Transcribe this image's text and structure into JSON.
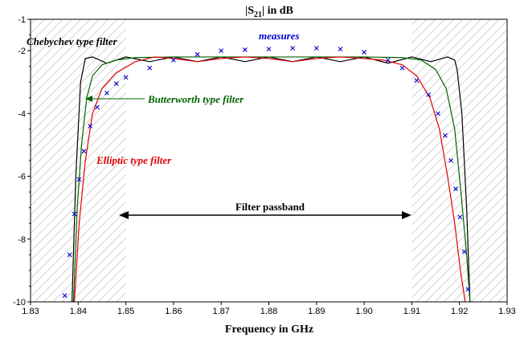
{
  "chart_data": {
    "type": "line",
    "title_main": "|S",
    "title_sub": "21",
    "title_rest": "| in dB",
    "xlabel": "Frequency in GHz",
    "ylabel": "",
    "xlim": [
      1.83,
      1.93
    ],
    "ylim": [
      -10,
      -1
    ],
    "x_ticks": [
      "1.83",
      "1.84",
      "1.85",
      "1.86",
      "1.87",
      "1.88",
      "1.89",
      "1.90",
      "1.91",
      "1.92",
      "1.93"
    ],
    "y_ticks": [
      "-10",
      "-8",
      "-6",
      "-4",
      "-2",
      "-1"
    ],
    "grid": false,
    "shaded_regions": [
      [
        1.83,
        1.85
      ],
      [
        1.91,
        1.93
      ]
    ],
    "series": [
      {
        "name": "Chebychev type filter",
        "color": "#000000",
        "style": "line",
        "x": [
          1.8387,
          1.8395,
          1.8405,
          1.8415,
          1.843,
          1.846,
          1.85,
          1.855,
          1.86,
          1.865,
          1.87,
          1.875,
          1.88,
          1.885,
          1.89,
          1.895,
          1.9,
          1.905,
          1.91,
          1.914,
          1.9175,
          1.919,
          1.9195,
          1.9205,
          1.9215,
          1.9222
        ],
        "y": [
          -10,
          -6,
          -3,
          -2.25,
          -2.2,
          -2.4,
          -2.2,
          -2.35,
          -2.2,
          -2.35,
          -2.2,
          -2.35,
          -2.2,
          -2.35,
          -2.2,
          -2.35,
          -2.2,
          -2.4,
          -2.2,
          -2.35,
          -2.2,
          -2.3,
          -2.6,
          -4,
          -7,
          -10
        ]
      },
      {
        "name": "Butterworth type filter",
        "color": "#006400",
        "style": "line",
        "x": [
          1.839,
          1.8398,
          1.8407,
          1.8418,
          1.843,
          1.845,
          1.848,
          1.852,
          1.86,
          1.87,
          1.88,
          1.89,
          1.9,
          1.908,
          1.912,
          1.915,
          1.9172,
          1.919,
          1.9203,
          1.9215,
          1.9222
        ],
        "y": [
          -10,
          -7,
          -5,
          -3.5,
          -2.8,
          -2.45,
          -2.3,
          -2.22,
          -2.2,
          -2.2,
          -2.2,
          -2.2,
          -2.2,
          -2.22,
          -2.3,
          -2.6,
          -3.2,
          -4.5,
          -6.5,
          -8.5,
          -10
        ],
        "annotation": "Butterworth type filter"
      },
      {
        "name": "Elliptic type filter",
        "color": "#e00000",
        "style": "line",
        "x": [
          1.8392,
          1.8402,
          1.8415,
          1.843,
          1.845,
          1.848,
          1.852,
          1.856,
          1.86,
          1.865,
          1.87,
          1.875,
          1.88,
          1.885,
          1.89,
          1.895,
          1.9,
          1.904,
          1.908,
          1.911,
          1.9138,
          1.9158,
          1.9175,
          1.919,
          1.9202,
          1.9212
        ],
        "y": [
          -10,
          -7.5,
          -5.5,
          -4,
          -3.2,
          -2.7,
          -2.35,
          -2.2,
          -2.25,
          -2.35,
          -2.25,
          -2.2,
          -2.25,
          -2.35,
          -2.25,
          -2.2,
          -2.25,
          -2.3,
          -2.45,
          -2.8,
          -3.5,
          -4.5,
          -6,
          -7.5,
          -9,
          -10
        ],
        "annotation": "Elliptic type filter"
      },
      {
        "name": "measures",
        "color": "#0000cc",
        "style": "marker",
        "x": [
          1.8372,
          1.8382,
          1.8392,
          1.8402,
          1.8412,
          1.8425,
          1.844,
          1.846,
          1.848,
          1.85,
          1.855,
          1.86,
          1.865,
          1.87,
          1.875,
          1.88,
          1.885,
          1.89,
          1.895,
          1.9,
          1.905,
          1.908,
          1.911,
          1.9135,
          1.9155,
          1.917,
          1.9182,
          1.9192,
          1.9201,
          1.921,
          1.9218
        ],
        "y": [
          -9.8,
          -8.5,
          -7.2,
          -6.1,
          -5.2,
          -4.4,
          -3.8,
          -3.35,
          -3.05,
          -2.85,
          -2.55,
          -2.3,
          -2.12,
          -2.0,
          -1.97,
          -1.95,
          -1.92,
          -1.92,
          -1.95,
          -2.05,
          -2.3,
          -2.55,
          -2.95,
          -3.4,
          -4.0,
          -4.7,
          -5.5,
          -6.4,
          -7.3,
          -8.4,
          -9.6
        ]
      }
    ],
    "annotations": {
      "chebychev": "Chebychev type filter",
      "measures": "measures",
      "butterworth": "Butterworth type filter",
      "elliptic": "Elliptic type filter",
      "passband": "Filter passband"
    }
  }
}
